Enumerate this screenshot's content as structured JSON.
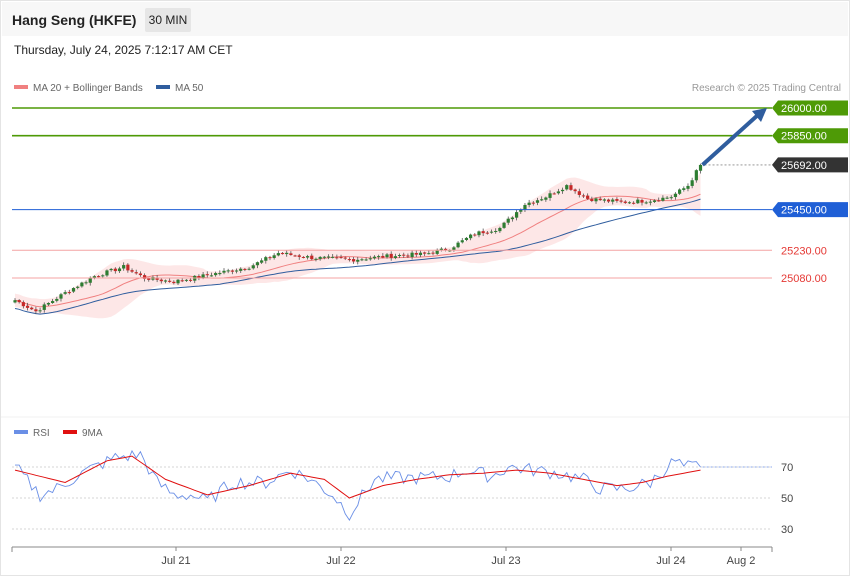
{
  "header": {
    "title": "Hang Seng (HKFE)",
    "timeframe": "30 MIN",
    "datetime": "Thursday, July 24, 2025 7:12:17 AM CET"
  },
  "legend": {
    "ma20_label": "MA 20 + Bollinger Bands",
    "ma50_label": "MA 50",
    "credit": "Research © 2025 Trading Central",
    "rsi_label": "RSI",
    "rsi_ma_label": "9MA"
  },
  "colors": {
    "ma20": "#f08080",
    "ma50": "#2f5d9e",
    "bands_fill": "#fde3e3",
    "candle_up": "#2e7d32",
    "candle_down": "#c62828",
    "resistance": "#4e9a06",
    "support_blue": "#1f5fd6",
    "support_red": "#e53935",
    "current": "#333333",
    "rsi": "#6a8fe6",
    "rsi_ma": "#e01010",
    "arrow": "#2f5d9e"
  },
  "chart_data": [
    {
      "type": "candlestick",
      "price_ylim": [
        24750,
        26070
      ],
      "x_ticks": [
        "Jul 21",
        "Jul 22",
        "Jul 23",
        "Jul 24",
        "Aug 2"
      ],
      "levels": [
        {
          "name": "resistance-2",
          "value": 26000.0,
          "label": "26000.00",
          "style": "resistance"
        },
        {
          "name": "resistance-1",
          "value": 25850.0,
          "label": "25850.00",
          "style": "resistance"
        },
        {
          "name": "current-price",
          "value": 25692.0,
          "label": "25692.00",
          "style": "current"
        },
        {
          "name": "pivot",
          "value": 25450.0,
          "label": "25450.00",
          "style": "pivot"
        },
        {
          "name": "support-1",
          "value": 25230.0,
          "label": "25230.00",
          "style": "support"
        },
        {
          "name": "support-2",
          "value": 25080.0,
          "label": "25080.00",
          "style": "support"
        }
      ],
      "target_arrow": {
        "from_price": 25692,
        "to_price": 26000
      },
      "close_anchors": [
        [
          0,
          24960
        ],
        [
          5,
          24900
        ],
        [
          12,
          25000
        ],
        [
          19,
          25090
        ],
        [
          26,
          25140
        ],
        [
          31,
          25080
        ],
        [
          38,
          25060
        ],
        [
          47,
          25100
        ],
        [
          56,
          25140
        ],
        [
          63,
          25215
        ],
        [
          71,
          25190
        ],
        [
          81,
          25180
        ],
        [
          90,
          25200
        ],
        [
          98,
          25210
        ],
        [
          104,
          25240
        ],
        [
          110,
          25320
        ],
        [
          116,
          25350
        ],
        [
          122,
          25480
        ],
        [
          127,
          25520
        ],
        [
          132,
          25580
        ],
        [
          137,
          25510
        ],
        [
          145,
          25490
        ],
        [
          152,
          25500
        ],
        [
          157,
          25520
        ],
        [
          161,
          25580
        ],
        [
          164,
          25692
        ]
      ]
    },
    {
      "type": "line",
      "title": "RSI",
      "ylim": [
        20,
        80
      ],
      "y_ticks": [
        70,
        50,
        30
      ],
      "reference_level": 70,
      "series": [
        {
          "name": "RSI",
          "anchors": [
            [
              0,
              70
            ],
            [
              6,
              52
            ],
            [
              10,
              56
            ],
            [
              16,
              66
            ],
            [
              24,
              76
            ],
            [
              30,
              78
            ],
            [
              34,
              60
            ],
            [
              38,
              52
            ],
            [
              42,
              52
            ],
            [
              46,
              48
            ],
            [
              52,
              60
            ],
            [
              60,
              60
            ],
            [
              66,
              68
            ],
            [
              70,
              63
            ],
            [
              76,
              52
            ],
            [
              80,
              40
            ],
            [
              86,
              62
            ],
            [
              92,
              63
            ],
            [
              98,
              63
            ],
            [
              104,
              64
            ],
            [
              108,
              68
            ],
            [
              114,
              64
            ],
            [
              118,
              70
            ],
            [
              124,
              68
            ],
            [
              130,
              66
            ],
            [
              136,
              62
            ],
            [
              140,
              56
            ],
            [
              146,
              56
            ],
            [
              152,
              60
            ],
            [
              156,
              70
            ],
            [
              158,
              74
            ],
            [
              160,
              70
            ],
            [
              164,
              70
            ]
          ]
        },
        {
          "name": "9MA",
          "anchors": [
            [
              0,
              68
            ],
            [
              12,
              60
            ],
            [
              22,
              74
            ],
            [
              28,
              77
            ],
            [
              36,
              62
            ],
            [
              46,
              52
            ],
            [
              56,
              58
            ],
            [
              66,
              66
            ],
            [
              74,
              62
            ],
            [
              80,
              50
            ],
            [
              88,
              58
            ],
            [
              96,
              62
            ],
            [
              104,
              65
            ],
            [
              112,
              66
            ],
            [
              120,
              68
            ],
            [
              128,
              66
            ],
            [
              136,
              62
            ],
            [
              144,
              58
            ],
            [
              150,
              60
            ],
            [
              156,
              64
            ],
            [
              164,
              68
            ]
          ]
        }
      ]
    }
  ]
}
